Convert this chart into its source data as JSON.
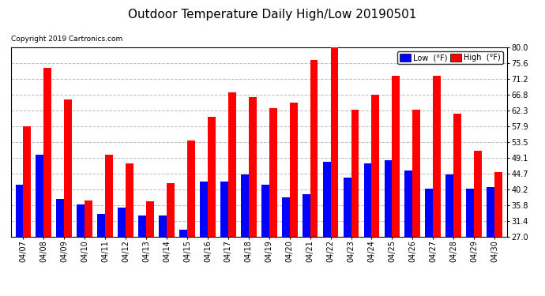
{
  "title": "Outdoor Temperature Daily High/Low 20190501",
  "copyright": "Copyright 2019 Cartronics.com",
  "dates": [
    "04/07",
    "04/08",
    "04/09",
    "04/10",
    "04/11",
    "04/12",
    "04/13",
    "04/14",
    "04/15",
    "04/16",
    "04/17",
    "04/18",
    "04/19",
    "04/20",
    "04/21",
    "04/22",
    "04/23",
    "04/24",
    "04/25",
    "04/26",
    "04/27",
    "04/28",
    "04/29",
    "04/30"
  ],
  "high": [
    58.0,
    74.3,
    65.5,
    37.2,
    50.0,
    47.5,
    37.0,
    42.0,
    54.0,
    60.5,
    67.5,
    66.0,
    63.0,
    64.5,
    76.5,
    80.0,
    62.5,
    66.8,
    72.0,
    62.5,
    72.0,
    61.5,
    51.0,
    45.0
  ],
  "low": [
    41.5,
    50.0,
    37.5,
    36.0,
    33.5,
    35.2,
    33.0,
    33.0,
    29.0,
    42.5,
    42.5,
    44.5,
    41.5,
    38.0,
    39.0,
    48.0,
    43.5,
    47.5,
    48.5,
    45.5,
    40.5,
    44.5,
    40.5,
    41.0
  ],
  "ylim": [
    27.0,
    80.0
  ],
  "yticks": [
    27.0,
    31.4,
    35.8,
    40.2,
    44.7,
    49.1,
    53.5,
    57.9,
    62.3,
    66.8,
    71.2,
    75.6,
    80.0
  ],
  "high_color": "#FF0000",
  "low_color": "#0000FF",
  "bg_color": "#FFFFFF",
  "grid_color": "#BBBBBB",
  "bar_width": 0.38,
  "title_fontsize": 11,
  "tick_fontsize": 7
}
